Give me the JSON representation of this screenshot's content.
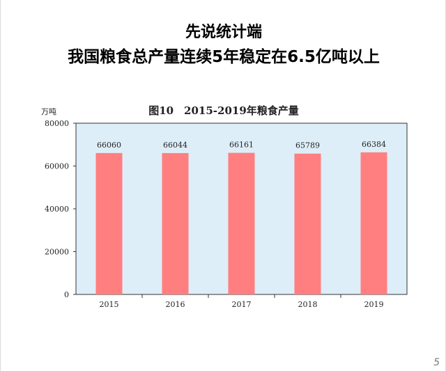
{
  "header": {
    "line1": "先说统计端",
    "line2": "我国粮食总产量连续5年稳定在6.5亿吨以上"
  },
  "page_number": "5",
  "colors": {
    "bar": "#ff7f80",
    "plot_bg": "#deeef8",
    "axis": "#333333"
  },
  "chart_data": {
    "type": "bar",
    "title": "图10　2015-2019年粮食产量",
    "ylabel": "万吨",
    "xlabel": "",
    "categories": [
      "2015",
      "2016",
      "2017",
      "2018",
      "2019"
    ],
    "values": [
      66060,
      66044,
      66161,
      65789,
      66384
    ],
    "data_labels": [
      "66060",
      "66044",
      "66161",
      "65789",
      "66384"
    ],
    "ylim": [
      0,
      80000
    ],
    "yticks": [
      "0",
      "20000",
      "40000",
      "60000",
      "80000"
    ],
    "grid": false,
    "legend": "none"
  }
}
